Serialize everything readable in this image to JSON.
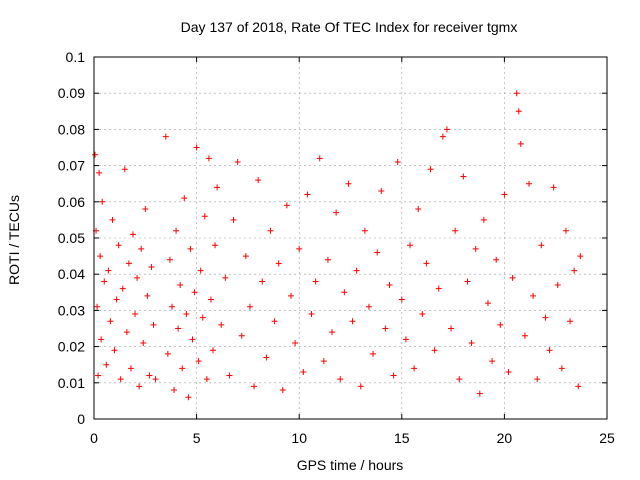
{
  "chart_data": {
    "type": "scatter",
    "title": "Day 137 of 2018, Rate Of TEC Index for receiver tgmx",
    "xlabel": "GPS time / hours",
    "ylabel": "ROTI / TECUs",
    "xlim": [
      0,
      25
    ],
    "ylim": [
      0,
      0.1
    ],
    "x_ticks": [
      0,
      5,
      10,
      15,
      20,
      25
    ],
    "x_tick_labels": [
      "0",
      "5",
      "10",
      "15",
      "20",
      "25"
    ],
    "y_ticks": [
      0,
      0.01,
      0.02,
      0.03,
      0.04,
      0.05,
      0.06,
      0.07,
      0.08,
      0.09,
      0.1
    ],
    "y_tick_labels": [
      "0",
      "0.01",
      "0.02",
      "0.03",
      "0.04",
      "0.05",
      "0.06",
      "0.07",
      "0.08",
      "0.09",
      "0.1"
    ],
    "grid": true,
    "marker": "plus",
    "series_color": "#ff0000",
    "series": [
      {
        "x": [
          0.05,
          0.1,
          0.15,
          0.2,
          0.25,
          0.3,
          0.35,
          0.4,
          0.5,
          0.6,
          0.7,
          0.8,
          0.9,
          1.0,
          1.1,
          1.2,
          1.3,
          1.4,
          1.5,
          1.6,
          1.7,
          1.8,
          1.9,
          2.0,
          2.1,
          2.2,
          2.3,
          2.4,
          2.5,
          2.6,
          2.7,
          2.8,
          2.9,
          3.0,
          3.5,
          3.6,
          3.7,
          3.8,
          3.9,
          4.0,
          4.1,
          4.2,
          4.3,
          4.4,
          4.5,
          4.6,
          4.7,
          4.8,
          4.9,
          5.0,
          5.1,
          5.2,
          5.3,
          5.4,
          5.5,
          5.6,
          5.7,
          5.8,
          5.9,
          6.0,
          6.2,
          6.4,
          6.6,
          6.8,
          7.0,
          7.2,
          7.4,
          7.6,
          7.8,
          8.0,
          8.2,
          8.4,
          8.6,
          8.8,
          9.0,
          9.2,
          9.4,
          9.6,
          9.8,
          10.0,
          10.2,
          10.4,
          10.6,
          10.8,
          11.0,
          11.2,
          11.4,
          11.6,
          11.8,
          12.0,
          12.2,
          12.4,
          12.6,
          12.8,
          13.0,
          13.2,
          13.4,
          13.6,
          13.8,
          14.0,
          14.2,
          14.4,
          14.6,
          14.8,
          15.0,
          15.2,
          15.4,
          15.6,
          15.8,
          16.0,
          16.2,
          16.4,
          16.6,
          16.8,
          17.0,
          17.2,
          17.4,
          17.6,
          17.8,
          18.0,
          18.2,
          18.4,
          18.6,
          18.8,
          19.0,
          19.2,
          19.4,
          19.6,
          19.8,
          20.0,
          20.2,
          20.4,
          20.6,
          20.7,
          20.8,
          21.0,
          21.2,
          21.4,
          21.6,
          21.8,
          22.0,
          22.2,
          22.4,
          22.6,
          22.8,
          23.0,
          23.2,
          23.4,
          23.6,
          23.7
        ],
        "y": [
          0.073,
          0.052,
          0.031,
          0.012,
          0.068,
          0.045,
          0.022,
          0.06,
          0.038,
          0.015,
          0.041,
          0.027,
          0.055,
          0.019,
          0.033,
          0.048,
          0.011,
          0.036,
          0.069,
          0.024,
          0.043,
          0.014,
          0.051,
          0.029,
          0.039,
          0.009,
          0.047,
          0.021,
          0.058,
          0.034,
          0.012,
          0.042,
          0.026,
          0.011,
          0.078,
          0.018,
          0.044,
          0.031,
          0.008,
          0.052,
          0.025,
          0.037,
          0.014,
          0.061,
          0.029,
          0.006,
          0.047,
          0.022,
          0.035,
          0.075,
          0.016,
          0.041,
          0.028,
          0.056,
          0.011,
          0.072,
          0.033,
          0.019,
          0.048,
          0.064,
          0.026,
          0.039,
          0.012,
          0.055,
          0.071,
          0.023,
          0.045,
          0.031,
          0.009,
          0.066,
          0.038,
          0.017,
          0.052,
          0.027,
          0.043,
          0.008,
          0.059,
          0.034,
          0.021,
          0.047,
          0.013,
          0.062,
          0.029,
          0.038,
          0.072,
          0.016,
          0.044,
          0.024,
          0.057,
          0.011,
          0.035,
          0.065,
          0.027,
          0.041,
          0.009,
          0.052,
          0.031,
          0.018,
          0.046,
          0.063,
          0.025,
          0.037,
          0.012,
          0.071,
          0.033,
          0.022,
          0.048,
          0.014,
          0.058,
          0.029,
          0.043,
          0.069,
          0.019,
          0.036,
          0.078,
          0.08,
          0.025,
          0.052,
          0.011,
          0.067,
          0.038,
          0.021,
          0.047,
          0.007,
          0.055,
          0.032,
          0.016,
          0.044,
          0.026,
          0.062,
          0.013,
          0.039,
          0.09,
          0.085,
          0.076,
          0.023,
          0.065,
          0.034,
          0.011,
          0.048,
          0.028,
          0.019,
          0.064,
          0.037,
          0.014,
          0.052,
          0.027,
          0.041,
          0.009,
          0.045
        ]
      }
    ]
  }
}
